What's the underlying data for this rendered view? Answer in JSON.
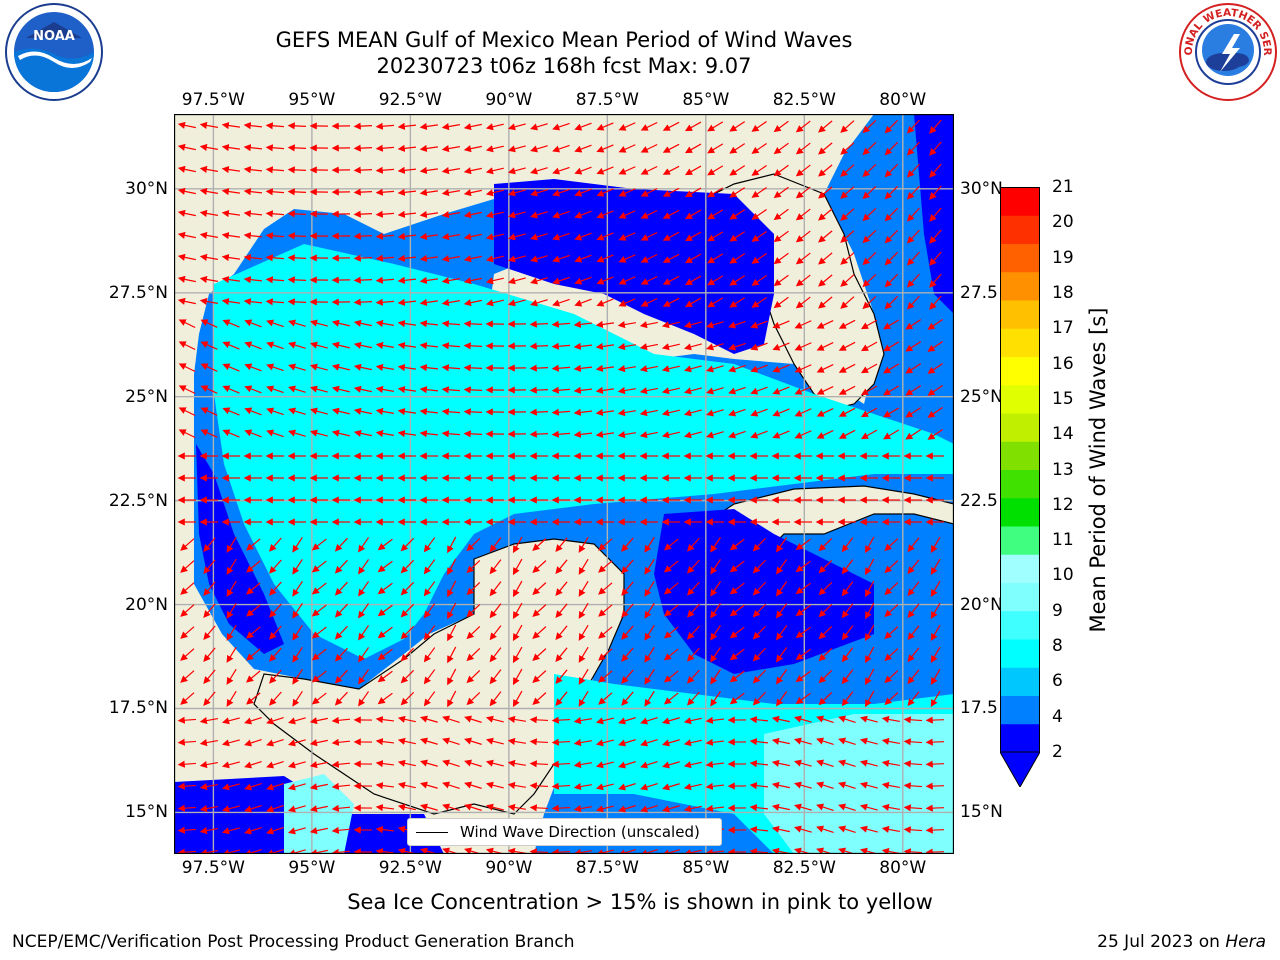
{
  "title": {
    "line1": "GEFS MEAN Gulf of Mexico Mean Period of Wind Waves",
    "line2": "20230723 t06z 168h fcst   Max: 9.07"
  },
  "logos": {
    "left": {
      "icon": "noaa-logo",
      "text": "NOAA"
    },
    "right": {
      "icon": "nws-logo",
      "text": "NATIONAL WEATHER SERVICE"
    }
  },
  "axes": {
    "x_ticks": [
      "97.5°W",
      "95°W",
      "92.5°W",
      "90°W",
      "87.5°W",
      "85°W",
      "82.5°W",
      "80°W"
    ],
    "x_values": [
      -97.5,
      -95,
      -92.5,
      -90,
      -87.5,
      -85,
      -82.5,
      -80
    ],
    "y_ticks_left": [
      "30°N",
      "27.5°N",
      "25°N",
      "22.5°N",
      "20°N",
      "17.5°N",
      "15°N"
    ],
    "y_ticks_right": [
      "30°N",
      "27.5",
      "25°N",
      "22.5",
      "20°N",
      "17.5",
      "15°N"
    ],
    "y_values": [
      30,
      27.5,
      25,
      22.5,
      20,
      17.5,
      15
    ],
    "lon_range": [
      -98.5,
      -78.7
    ],
    "lat_range": [
      14.0,
      31.8
    ],
    "grid": true
  },
  "colorbar": {
    "label": "Mean Period of Wind Waves [s]",
    "tick_labels": [
      "21",
      "20",
      "19",
      "18",
      "17",
      "16",
      "15",
      "14",
      "13",
      "12",
      "11",
      "10",
      "9",
      "8",
      "6",
      "4",
      "2"
    ],
    "levels": [
      2,
      3,
      4,
      5,
      6,
      7,
      8,
      9,
      10,
      11,
      12,
      13,
      14,
      15,
      16,
      17,
      18,
      19,
      20,
      21
    ],
    "colors": [
      "#0000ff",
      "#0080ff",
      "#00c8ff",
      "#00ffff",
      "#40ffff",
      "#80ffff",
      "#a0ffff",
      "#40ff80",
      "#00e000",
      "#40e000",
      "#80e000",
      "#c0f000",
      "#e0ff00",
      "#ffff00",
      "#ffe000",
      "#ffc000",
      "#ff9000",
      "#ff6000",
      "#ff3000",
      "#ff0000"
    ],
    "extend": "min"
  },
  "legend": {
    "label": "Wind Wave Direction (unscaled)"
  },
  "fill_colors": {
    "land": "#efefdc",
    "under2": "#0000ff",
    "p2_4": "#0080ff",
    "p4_6": "#00ffff",
    "p6_8": "#80ffff",
    "p8_9": "#a0ffff",
    "arrow": "#ff0000"
  },
  "sea_ice_note": "Sea Ice Concentration > 15% is shown in pink to yellow",
  "footer": {
    "left": "NCEP/EMC/Verification Post Processing Product Generation Branch",
    "date": "25 Jul 2023 on ",
    "host": "Hera"
  }
}
